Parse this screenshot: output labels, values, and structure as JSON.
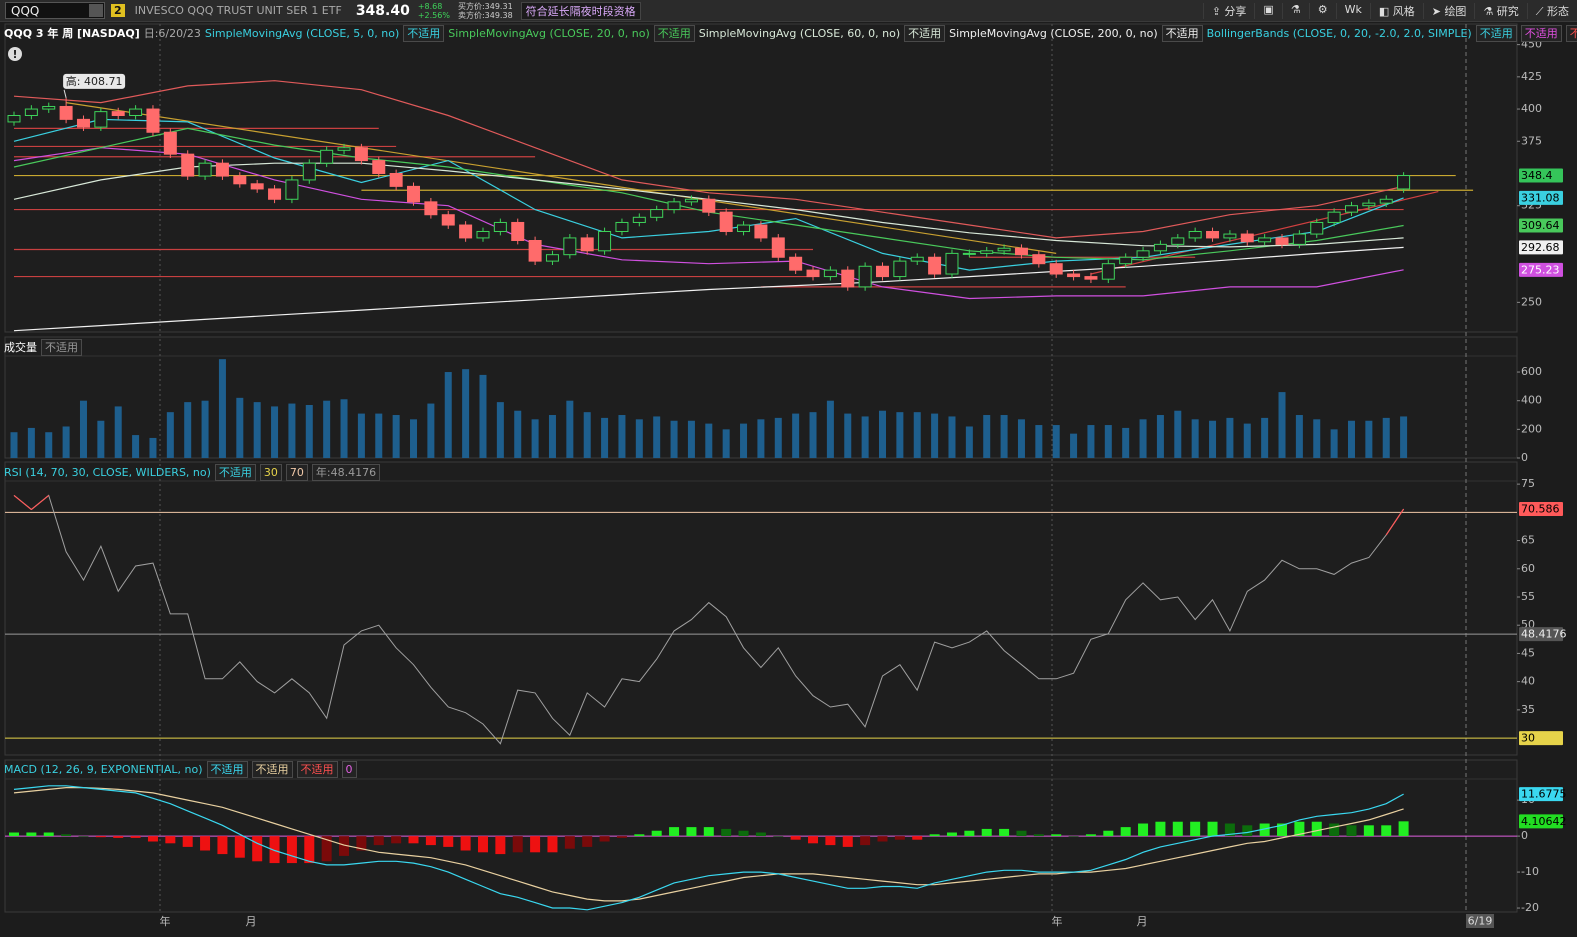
{
  "toolbar": {
    "symbol": "QQQ",
    "badge": "2",
    "description": "INVESCO QQQ TRUST UNIT SER 1 ETF",
    "last": "348.40",
    "change": "+8.68",
    "change_percent": "+2.56%",
    "bid": "买方价:349.31",
    "ask": "卖方价:349.38",
    "session": "符合延长隔夜时段资格",
    "buttons": [
      "分享",
      "Wk",
      "风格",
      "绘图",
      "研究",
      "形态"
    ]
  },
  "date_axis": {
    "labels": [
      "年",
      "月",
      "年",
      "月"
    ],
    "end_label": "6/19"
  },
  "chart_data": [
    {
      "type": "candlestick",
      "title": "QQQ 3 年 周 [NASDAQ]",
      "subtitle": "日:6/20/23",
      "high_annotation": "高: 408.71",
      "open": [
        390,
        395,
        400,
        402,
        392,
        386,
        398,
        395,
        400,
        382,
        365,
        348,
        358,
        348,
        342,
        338,
        330,
        345,
        358,
        368,
        370,
        360,
        350,
        340,
        328,
        318,
        310,
        300,
        305,
        312,
        298,
        282,
        287,
        300,
        290,
        305,
        312,
        316,
        322,
        328,
        330,
        320,
        305,
        310,
        300,
        285,
        275,
        270,
        275,
        262,
        278,
        270,
        282,
        285,
        272,
        288,
        288,
        290,
        292,
        287,
        280,
        272,
        270,
        268,
        280,
        285,
        290,
        295,
        300,
        305,
        300,
        303,
        297,
        300,
        295,
        303,
        312,
        320,
        325,
        327,
        338
      ],
      "high": [
        398,
        403,
        405,
        408.71,
        395,
        401,
        401,
        403,
        403,
        385,
        368,
        361,
        361,
        351,
        345,
        341,
        348,
        361,
        371,
        373,
        373,
        363,
        353,
        343,
        331,
        321,
        313,
        308,
        315,
        315,
        301,
        290,
        303,
        303,
        308,
        315,
        319,
        325,
        331,
        333,
        333,
        323,
        313,
        313,
        303,
        288,
        278,
        278,
        278,
        281,
        281,
        285,
        288,
        288,
        291,
        291,
        293,
        295,
        295,
        290,
        283,
        275,
        273,
        283,
        288,
        293,
        298,
        303,
        308,
        308,
        306,
        306,
        303,
        303,
        306,
        315,
        323,
        328,
        330,
        333,
        351
      ],
      "low": [
        387,
        392,
        397,
        389,
        383,
        383,
        392,
        392,
        379,
        362,
        345,
        345,
        345,
        339,
        335,
        327,
        327,
        342,
        355,
        365,
        357,
        347,
        337,
        325,
        315,
        307,
        297,
        297,
        302,
        295,
        279,
        279,
        284,
        287,
        287,
        302,
        309,
        313,
        319,
        325,
        317,
        302,
        302,
        297,
        282,
        272,
        267,
        267,
        259,
        259,
        267,
        267,
        279,
        269,
        269,
        285,
        285,
        287,
        284,
        277,
        269,
        267,
        265,
        265,
        277,
        282,
        287,
        292,
        297,
        297,
        297,
        294,
        294,
        292,
        292,
        300,
        309,
        317,
        322,
        324,
        335
      ],
      "close": [
        395,
        400,
        402,
        392,
        386,
        398,
        395,
        400,
        382,
        365,
        348,
        358,
        348,
        342,
        338,
        330,
        345,
        358,
        368,
        370,
        360,
        350,
        340,
        328,
        318,
        310,
        300,
        305,
        312,
        298,
        282,
        287,
        300,
        290,
        305,
        312,
        316,
        322,
        328,
        330,
        320,
        305,
        310,
        300,
        285,
        275,
        270,
        275,
        262,
        278,
        270,
        282,
        285,
        272,
        288,
        288,
        290,
        292,
        287,
        280,
        272,
        270,
        268,
        280,
        285,
        290,
        295,
        300,
        305,
        300,
        303,
        297,
        300,
        295,
        303,
        312,
        320,
        325,
        327,
        330,
        348.4
      ],
      "up_color": "#3ed35a",
      "down_color": "#ff6b6b",
      "last_color": "#35c45a",
      "ylim": [
        227,
        466
      ],
      "yticks": [
        250,
        325,
        375,
        400,
        425,
        450
      ],
      "series": [
        {
          "name": "SimpleMovingAvg (CLOSE, 5, 0, no)",
          "status": "不适用",
          "color": "#3ad0e0",
          "end_label": true,
          "x": [
            0,
            5,
            10,
            15,
            20,
            25,
            30,
            35,
            40,
            45,
            50,
            55,
            60,
            65,
            70,
            75,
            80
          ],
          "values": [
            375,
            392,
            390,
            362,
            343,
            360,
            322,
            300,
            305,
            315,
            288,
            275,
            282,
            285,
            295,
            305,
            331.08
          ]
        },
        {
          "name": "SimpleMovingAvg (CLOSE, 20, 0, no)",
          "status": "不适用",
          "color": "#49c95b",
          "end_label": true,
          "x": [
            0,
            5,
            10,
            15,
            20,
            25,
            30,
            35,
            40,
            45,
            50,
            55,
            60,
            65,
            70,
            75,
            80
          ],
          "values": [
            355,
            370,
            385,
            372,
            362,
            355,
            345,
            335,
            320,
            310,
            300,
            290,
            285,
            283,
            290,
            298,
            309.64
          ]
        },
        {
          "name": "SimpleMovingAvg (CLOSE, 60, 0, no)",
          "status": "不适用",
          "color": "#d8e8d8",
          "end_label": false,
          "x": [
            0,
            5,
            10,
            15,
            20,
            25,
            30,
            35,
            40,
            45,
            50,
            55,
            60,
            65,
            70,
            75,
            80
          ],
          "values": [
            330,
            345,
            355,
            358,
            358,
            352,
            345,
            338,
            330,
            322,
            312,
            304,
            298,
            294,
            293,
            295,
            300
          ]
        },
        {
          "name": "SimpleMovingAvg (CLOSE, 200, 0, no)",
          "status": "不适用",
          "color": "#f0f0f0",
          "end_label": true,
          "x": [
            0,
            5,
            10,
            15,
            20,
            25,
            30,
            35,
            40,
            45,
            50,
            55,
            60,
            65,
            70,
            75,
            80
          ],
          "values": [
            228,
            232,
            236,
            240,
            244,
            248,
            252,
            256,
            260,
            263,
            266,
            270,
            274,
            278,
            283,
            288,
            292.68
          ]
        }
      ],
      "bands": {
        "name": "BollingerBands (CLOSE, 0, 20, -2.0, 2.0, SIMPLE)",
        "color": "#3ad0e0",
        "status": [
          "不适用",
          "不适用",
          "不适用"
        ],
        "status_colors": [
          "#3ad0e0",
          "#e050e0",
          "#ff5050"
        ],
        "x": [
          0,
          5,
          10,
          15,
          20,
          25,
          30,
          35,
          40,
          45,
          50,
          55,
          60,
          65,
          70,
          75,
          80
        ],
        "upper": {
          "color": "#e05a5a",
          "end_label": false,
          "values": [
            410,
            405,
            418,
            422,
            415,
            395,
            370,
            345,
            335,
            330,
            320,
            310,
            300,
            305,
            318,
            325,
            340
          ]
        },
        "lower": {
          "color": "#d050e0",
          "end_label": true,
          "values": [
            360,
            370,
            365,
            345,
            330,
            325,
            295,
            283,
            280,
            282,
            262,
            253,
            255,
            255,
            262,
            262,
            275.23
          ]
        }
      },
      "levels": [
        {
          "x": [
            0,
            21
          ],
          "value": 385,
          "color": "#c84040"
        },
        {
          "x": [
            0,
            22
          ],
          "value": 371,
          "color": "#c84040"
        },
        {
          "x": [
            0,
            30
          ],
          "value": 363,
          "color": "#c84040"
        },
        {
          "x": [
            0,
            83
          ],
          "value": 348.4,
          "color": "#c8a830"
        },
        {
          "x": [
            20,
            84
          ],
          "value": 337,
          "color": "#c8a830"
        },
        {
          "x": [
            0,
            80
          ],
          "value": 322,
          "color": "#c84040"
        },
        {
          "x": [
            0,
            46
          ],
          "value": 291,
          "color": "#c84040"
        },
        {
          "x": [
            0,
            46
          ],
          "value": 270,
          "color": "#c84040"
        },
        {
          "x": [
            55,
            68
          ],
          "value": 285,
          "color": "#c84040"
        },
        {
          "x": [
            43,
            64
          ],
          "value": 262,
          "color": "#c84040"
        }
      ],
      "trendlines": [
        {
          "x": [
            3,
            60
          ],
          "values": [
            405,
            288
          ],
          "color": "#c8a030"
        },
        {
          "x": [
            62,
            82
          ],
          "values": [
            272,
            336
          ],
          "color": "#d04040"
        }
      ]
    },
    {
      "type": "bar",
      "title": "成交量",
      "status": "不适用",
      "color": "#1e5f8e",
      "values": [
        180,
        210,
        180,
        220,
        400,
        260,
        360,
        160,
        140,
        320,
        390,
        400,
        690,
        420,
        390,
        360,
        380,
        370,
        400,
        410,
        310,
        310,
        300,
        270,
        380,
        600,
        620,
        580,
        390,
        330,
        270,
        300,
        400,
        320,
        280,
        300,
        270,
        290,
        260,
        260,
        240,
        200,
        240,
        270,
        280,
        310,
        320,
        400,
        310,
        290,
        330,
        320,
        320,
        310,
        290,
        220,
        300,
        300,
        270,
        230,
        230,
        170,
        230,
        230,
        210,
        270,
        300,
        330,
        270,
        260,
        280,
        240,
        280,
        460,
        300,
        270,
        200,
        260,
        260,
        280,
        290
      ],
      "ylim": [
        0,
        705
      ],
      "yticks": [
        0,
        200,
        400,
        600
      ]
    },
    {
      "type": "line",
      "title": "RSI (14, 70, 30, CLOSE, WILDERS, no)",
      "title_color": "#3ad0e0",
      "status": "不适用",
      "reference_text": "年:48.4176",
      "reference": 48.4176,
      "reference_color": "#9a9a9a",
      "color": "#a0a0a0",
      "over_color": "#ff5a5a",
      "levels": [
        {
          "value": 30,
          "color": "#e6d34a"
        },
        {
          "value": 70,
          "color": "#f0c8a8"
        }
      ],
      "values": [
        73,
        70.5,
        73,
        63,
        58,
        64,
        56,
        60.5,
        61,
        52,
        52,
        40.5,
        40.5,
        43.5,
        40,
        38,
        40.5,
        38,
        33.5,
        46.5,
        49,
        50,
        46,
        43,
        39,
        35.5,
        34.5,
        32.5,
        29,
        38.5,
        38,
        33.5,
        30.5,
        38,
        35.5,
        40.5,
        40,
        44,
        49,
        51,
        54,
        51.5,
        46,
        42.5,
        46,
        41,
        37.5,
        35.5,
        36,
        32,
        41,
        43,
        38.5,
        47,
        46,
        47,
        49,
        45.5,
        43,
        40.5,
        40.5,
        41.5,
        47.5,
        48.5,
        54.5,
        57.5,
        54.5,
        55,
        51,
        54.5,
        49,
        56,
        58,
        61.5,
        60,
        60,
        59,
        61,
        62,
        66,
        70.586
      ],
      "ylim": [
        27,
        75.2
      ],
      "yticks": [
        35,
        40,
        45,
        50,
        55,
        60,
        65,
        75
      ]
    },
    {
      "type": "macd",
      "title": "MACD (12, 26, 9, EXPONENTIAL, no)",
      "title_color": "#3ad0e0",
      "zero": 0,
      "zero_color": "#e060e0",
      "series": [
        {
          "status": "不适用",
          "color": "#3ad8f0",
          "values": [
            13,
            13.5,
            14,
            14,
            13.5,
            13,
            12.5,
            12,
            10.5,
            9,
            7,
            5,
            3,
            0.5,
            -2,
            -4,
            -5.5,
            -7,
            -8,
            -8,
            -7.5,
            -7,
            -7,
            -7.5,
            -8.5,
            -10,
            -12,
            -14,
            -16,
            -17,
            -18.5,
            -20,
            -20,
            -20.5,
            -19.5,
            -18.5,
            -17,
            -15,
            -13,
            -12,
            -11,
            -10.5,
            -10,
            -10,
            -10.5,
            -11.5,
            -12.5,
            -13.5,
            -14.5,
            -14.5,
            -14,
            -14,
            -14.5,
            -13,
            -12,
            -11,
            -10,
            -9.5,
            -9.5,
            -10,
            -10,
            -10,
            -9.5,
            -8,
            -6.5,
            -4.5,
            -3,
            -2,
            -1,
            0,
            0.5,
            1,
            2,
            3,
            4.5,
            5.5,
            6,
            6.5,
            7.5,
            9,
            11.6775
          ]
        },
        {
          "status": "不适用",
          "color": "#e8d0a0",
          "values": [
            12,
            12.5,
            13,
            13.5,
            13.5,
            13.3,
            13,
            12.5,
            12,
            11,
            10,
            9,
            8,
            6.5,
            5,
            3.5,
            2,
            0.5,
            -1,
            -2.5,
            -3.5,
            -4.5,
            -5,
            -5.5,
            -6,
            -7,
            -8,
            -9.5,
            -11,
            -12.5,
            -14,
            -15.5,
            -16.5,
            -17.5,
            -18,
            -18,
            -17.5,
            -16.5,
            -15.5,
            -14.5,
            -13.5,
            -12.5,
            -11.5,
            -11,
            -10.5,
            -10.5,
            -10.5,
            -11,
            -11.5,
            -12,
            -12.5,
            -13,
            -13.5,
            -13.5,
            -13,
            -12.5,
            -12,
            -11.5,
            -11,
            -10.5,
            -10.5,
            -10,
            -10,
            -9.5,
            -9,
            -8,
            -7,
            -6,
            -5,
            -4,
            -3,
            -2,
            -1.5,
            -0.5,
            0.5,
            1.5,
            2.5,
            3.5,
            4.5,
            6,
            7.57108
          ]
        },
        {
          "status": "不适用",
          "color": "#ff5050",
          "hist_colors": [
            "#22ee22",
            "#0c6c0c",
            "#ee1111",
            "#7a0a0a"
          ],
          "values": [
            1,
            1,
            1,
            0.5,
            0,
            -0.3,
            -0.5,
            -0.5,
            -1.5,
            -2,
            -3,
            -4,
            -5,
            -6,
            -7,
            -7.5,
            -7.5,
            -7.5,
            -7,
            -5.5,
            -4,
            -2.5,
            -2,
            -2,
            -2.5,
            -3,
            -4,
            -4.5,
            -5,
            -4.5,
            -4.5,
            -4.5,
            -3.5,
            -3,
            -1.5,
            -0.5,
            0.5,
            1.5,
            2.5,
            2.5,
            2.5,
            2,
            1.5,
            1,
            0,
            -1,
            -2,
            -2.5,
            -3,
            -2.5,
            -1.5,
            -1,
            -1,
            0.5,
            1,
            1.5,
            2,
            2,
            1.5,
            0.5,
            0.5,
            0,
            0.5,
            1.5,
            2.5,
            3.5,
            4,
            4,
            4,
            4,
            3.5,
            3,
            3.5,
            3.5,
            4,
            4,
            3.5,
            3,
            3,
            3,
            4.10642
          ]
        }
      ],
      "ylim": [
        -21.1,
        15.6
      ],
      "yticks": [
        -20,
        -10,
        0,
        10
      ]
    }
  ]
}
